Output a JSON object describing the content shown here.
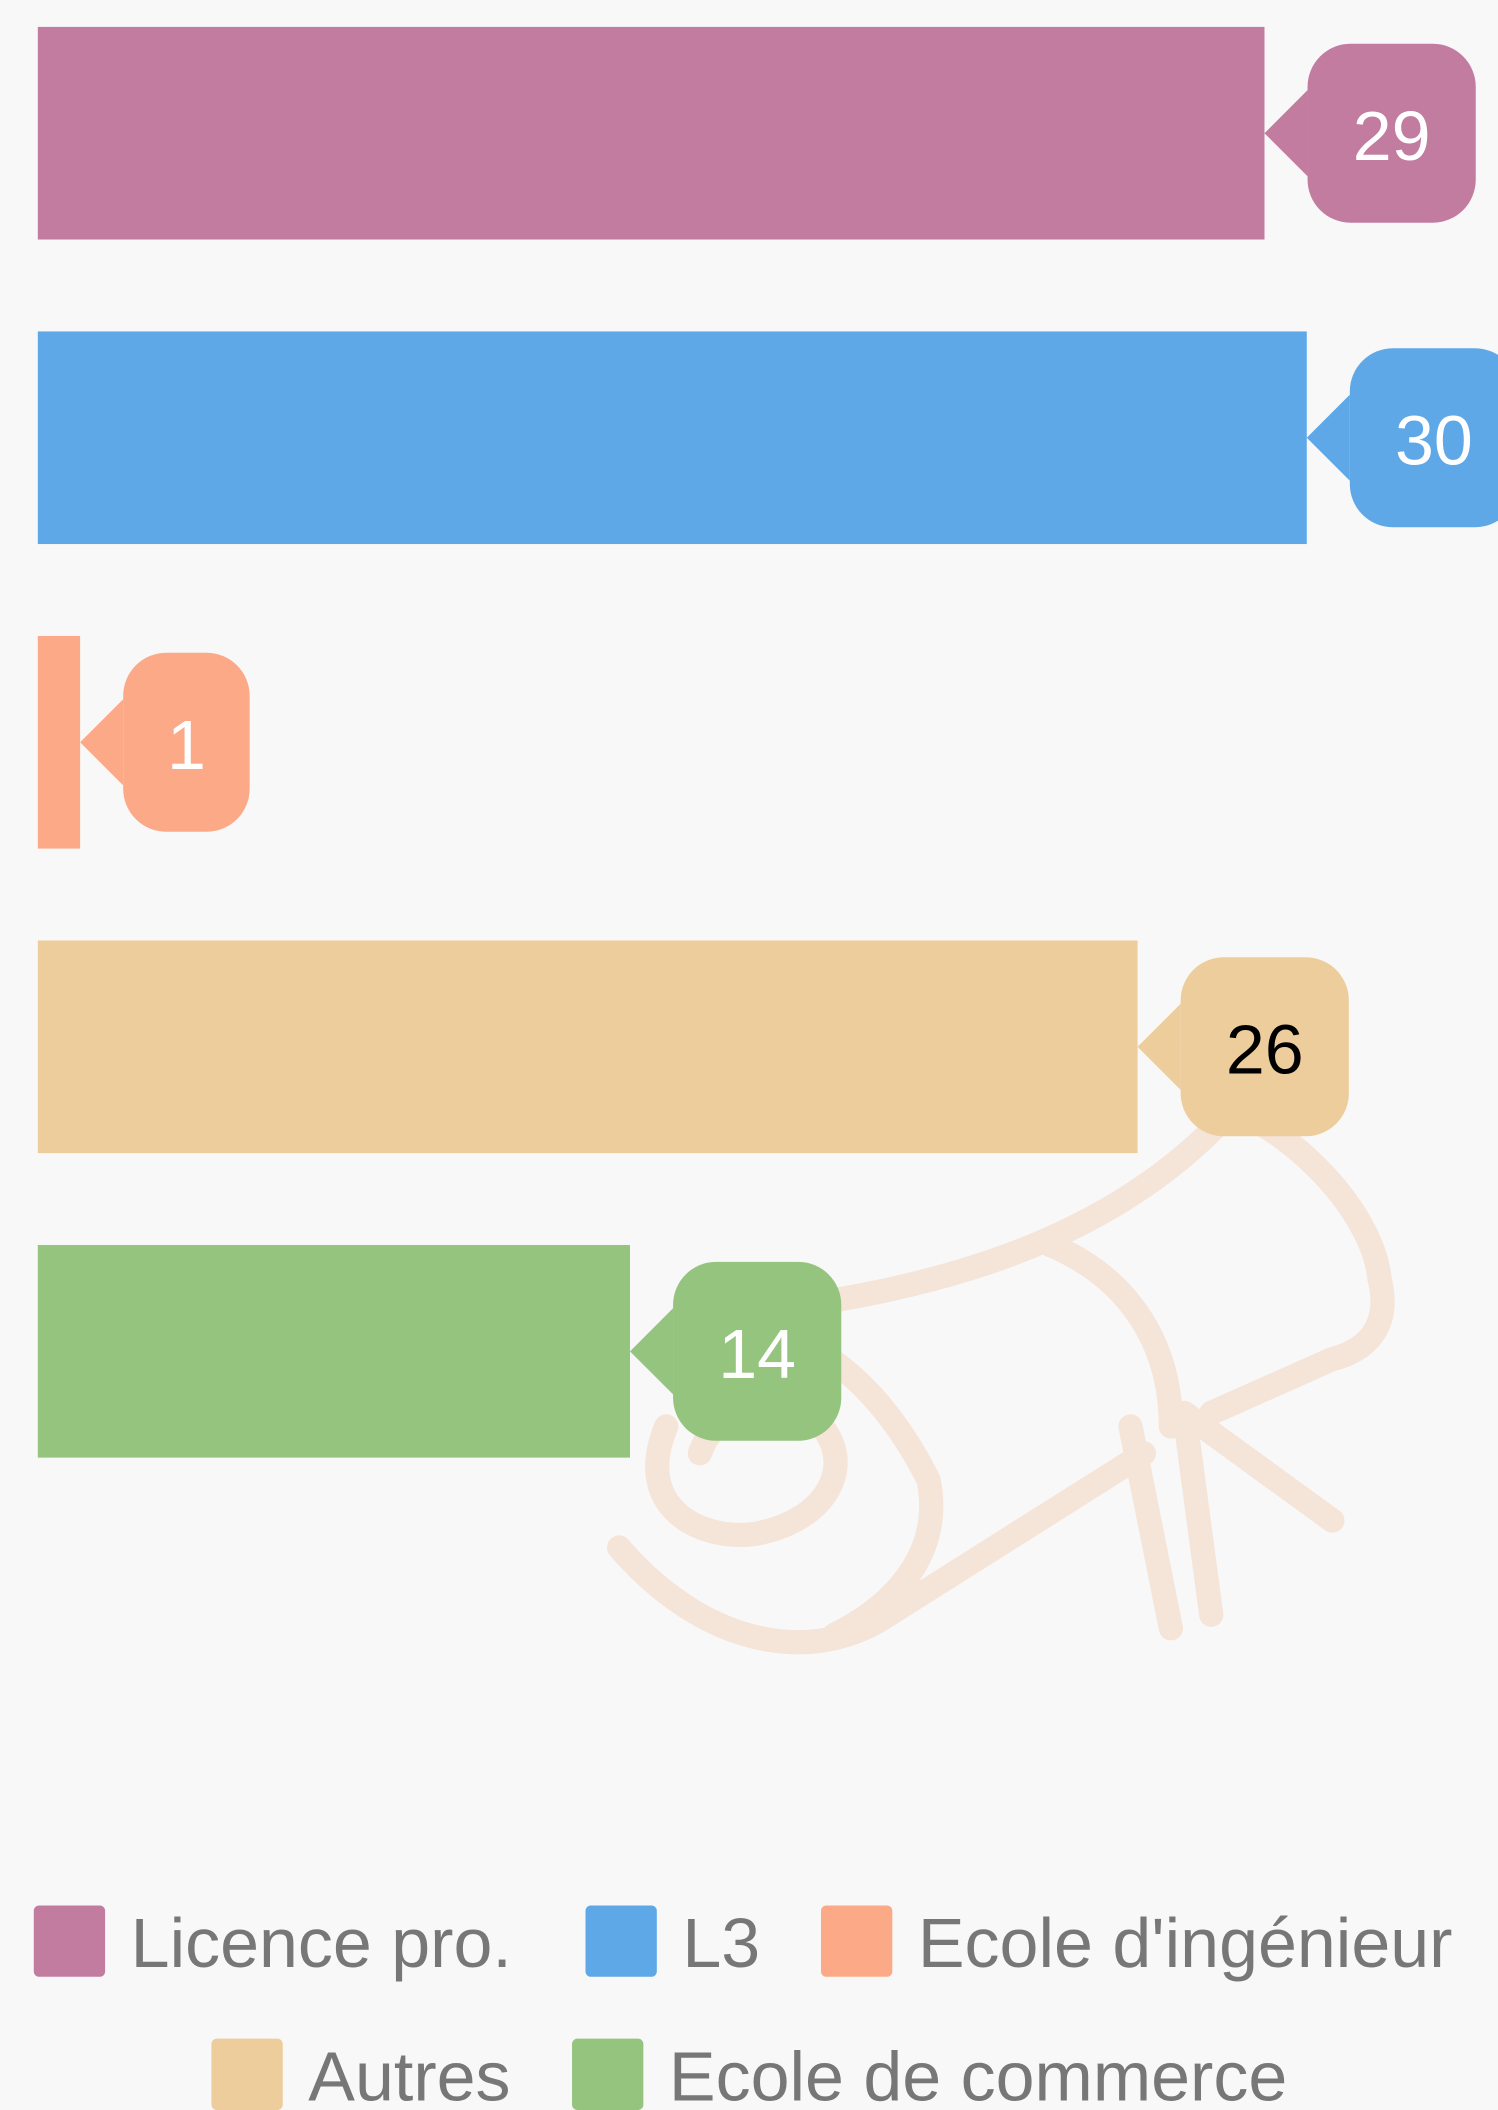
{
  "chart_data": {
    "type": "bar",
    "orientation": "horizontal",
    "xlim": [
      0,
      30
    ],
    "series": [
      {
        "name": "Licence pro.",
        "color": "#c27ca0",
        "values": [
          29
        ],
        "label_color": "#ffffff"
      },
      {
        "name": "L3",
        "color": "#5fa8e8",
        "values": [
          30
        ],
        "label_color": "#ffffff"
      },
      {
        "name": "Ecole d'ingénieur",
        "color": "#fca987",
        "values": [
          1
        ],
        "label_color": "#ffffff"
      },
      {
        "name": "Autres",
        "color": "#eecd9c",
        "values": [
          26
        ],
        "label_color": "#000000"
      },
      {
        "name": "Ecole de commerce",
        "color": "#94c47d",
        "values": [
          14
        ],
        "label_color": "#ffffff"
      }
    ]
  }
}
